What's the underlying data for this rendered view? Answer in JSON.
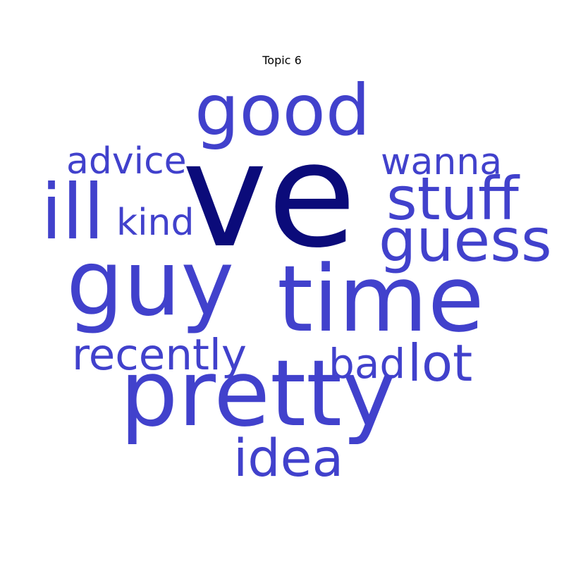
{
  "chart_data": {
    "type": "wordcloud",
    "title": "Topic 6",
    "colors": {
      "top_word": "#0b0b7a",
      "word": "#4141cc"
    },
    "words": [
      {
        "text": "ve",
        "rank": 1
      },
      {
        "text": "good",
        "rank": 2
      },
      {
        "text": "ill",
        "rank": 3
      },
      {
        "text": "guy",
        "rank": 4
      },
      {
        "text": "time",
        "rank": 5
      },
      {
        "text": "pretty",
        "rank": 6
      },
      {
        "text": "stuff",
        "rank": 7
      },
      {
        "text": "guess",
        "rank": 8
      },
      {
        "text": "wanna",
        "rank": 9
      },
      {
        "text": "advice",
        "rank": 10
      },
      {
        "text": "kind",
        "rank": 11
      },
      {
        "text": "recently",
        "rank": 12
      },
      {
        "text": "lot",
        "rank": 13
      },
      {
        "text": "bad",
        "rank": 14
      },
      {
        "text": "idea",
        "rank": 15
      }
    ]
  }
}
